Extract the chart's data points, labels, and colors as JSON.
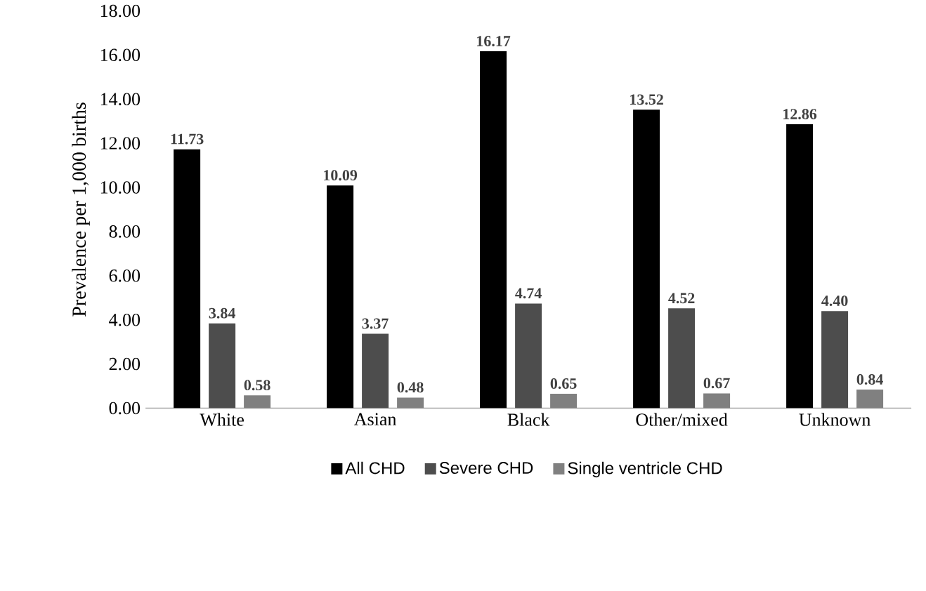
{
  "chart_data": {
    "type": "bar",
    "ylabel": "Prevalence per 1,000 births",
    "categories": [
      "White",
      "Asian",
      "Black",
      "Other/mixed",
      "Unknown"
    ],
    "series": [
      {
        "name": "All CHD",
        "color": "#000000",
        "values": [
          11.73,
          10.09,
          16.17,
          13.52,
          12.86
        ],
        "value_labels": [
          "11.73",
          "10.09",
          "16.17",
          "13.52",
          "12.86"
        ]
      },
      {
        "name": "Severe CHD",
        "color": "#4d4d4d",
        "values": [
          3.84,
          3.37,
          4.74,
          4.52,
          4.4
        ],
        "value_labels": [
          "3.84",
          "3.37",
          "4.74",
          "4.52",
          "4.40"
        ]
      },
      {
        "name": "Single ventricle CHD",
        "color": "#808080",
        "values": [
          0.58,
          0.48,
          0.65,
          0.67,
          0.84
        ],
        "value_labels": [
          "0.58",
          "0.48",
          "0.65",
          "0.67",
          "0.84"
        ]
      }
    ],
    "ylim": [
      0,
      18
    ],
    "yticks": [
      {
        "value": 0,
        "label": "0.00"
      },
      {
        "value": 2,
        "label": "2.00"
      },
      {
        "value": 4,
        "label": "4.00"
      },
      {
        "value": 6,
        "label": "6.00"
      },
      {
        "value": 8,
        "label": "8.00"
      },
      {
        "value": 10,
        "label": "10.00"
      },
      {
        "value": 12,
        "label": "12.00"
      },
      {
        "value": 14,
        "label": "14.00"
      },
      {
        "value": 16,
        "label": "16.00"
      },
      {
        "value": 18,
        "label": "18.00"
      }
    ],
    "legend": "bottom",
    "grid": false
  }
}
